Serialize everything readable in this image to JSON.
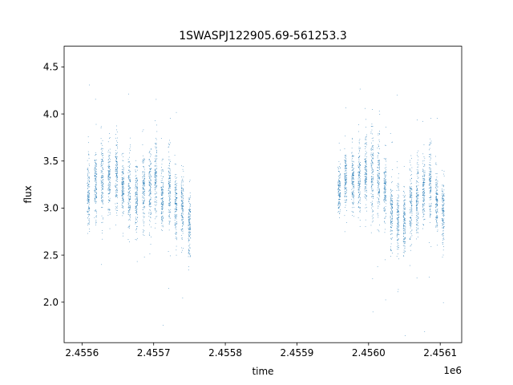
{
  "chart_data": {
    "type": "scatter",
    "title": "1SWASPJ122905.69-561253.3",
    "xlabel": "time",
    "ylabel": "flux",
    "x_offset_label": "1e6",
    "xlim": [
      2455575,
      2456130
    ],
    "ylim": [
      1.57,
      4.72
    ],
    "x_ticks": [
      2455600,
      2455700,
      2455800,
      2455900,
      2456000,
      2456100
    ],
    "x_tick_labels": [
      "2.4556",
      "2.4557",
      "2.4558",
      "2.4559",
      "2.4560",
      "2.4561"
    ],
    "y_ticks": [
      2.0,
      2.5,
      3.0,
      3.5,
      4.0,
      4.5
    ],
    "y_tick_labels": [
      "2.0",
      "2.5",
      "3.0",
      "3.5",
      "4.0",
      "4.5"
    ],
    "grid": false,
    "legend": "none",
    "marker_color": "#1f77b4",
    "series": [
      {
        "clusters": [
          {
            "x": 2455609,
            "mean": 3.15,
            "spread": 0.42
          },
          {
            "x": 2455619,
            "mean": 3.25,
            "spread": 0.4
          },
          {
            "x": 2455628,
            "mean": 3.3,
            "spread": 0.45
          },
          {
            "x": 2455638,
            "mean": 3.3,
            "spread": 0.42
          },
          {
            "x": 2455648,
            "mean": 3.35,
            "spread": 0.45
          },
          {
            "x": 2455657,
            "mean": 3.2,
            "spread": 0.35
          },
          {
            "x": 2455666,
            "mean": 3.15,
            "spread": 0.5
          },
          {
            "x": 2455676,
            "mean": 3.1,
            "spread": 0.48
          },
          {
            "x": 2455686,
            "mean": 3.2,
            "spread": 0.45
          },
          {
            "x": 2455695,
            "mean": 3.2,
            "spread": 0.52
          },
          {
            "x": 2455703,
            "mean": 3.3,
            "spread": 0.55
          },
          {
            "x": 2455712,
            "mean": 3.1,
            "spread": 0.4
          },
          {
            "x": 2455722,
            "mean": 3.2,
            "spread": 0.45
          },
          {
            "x": 2455731,
            "mean": 3.0,
            "spread": 0.45
          },
          {
            "x": 2455740,
            "mean": 3.0,
            "spread": 0.4
          },
          {
            "x": 2455750,
            "mean": 2.85,
            "spread": 0.4
          },
          {
            "x": 2455959,
            "mean": 3.2,
            "spread": 0.3
          },
          {
            "x": 2455968,
            "mean": 3.3,
            "spread": 0.35
          },
          {
            "x": 2455978,
            "mean": 3.3,
            "spread": 0.4
          },
          {
            "x": 2455987,
            "mean": 3.3,
            "spread": 0.45
          },
          {
            "x": 2455996,
            "mean": 3.4,
            "spread": 0.45
          },
          {
            "x": 2456005,
            "mean": 3.35,
            "spread": 0.55
          },
          {
            "x": 2456014,
            "mean": 3.3,
            "spread": 0.45
          },
          {
            "x": 2456023,
            "mean": 3.2,
            "spread": 0.4
          },
          {
            "x": 2456032,
            "mean": 2.95,
            "spread": 0.45
          },
          {
            "x": 2456041,
            "mean": 2.9,
            "spread": 0.45
          },
          {
            "x": 2456050,
            "mean": 2.85,
            "spread": 0.4
          },
          {
            "x": 2456059,
            "mean": 3.05,
            "spread": 0.45
          },
          {
            "x": 2456068,
            "mean": 3.1,
            "spread": 0.48
          },
          {
            "x": 2456077,
            "mean": 3.2,
            "spread": 0.45
          },
          {
            "x": 2456086,
            "mean": 3.25,
            "spread": 0.42
          },
          {
            "x": 2456095,
            "mean": 3.05,
            "spread": 0.4
          },
          {
            "x": 2456104,
            "mean": 2.95,
            "spread": 0.4
          }
        ]
      }
    ]
  }
}
